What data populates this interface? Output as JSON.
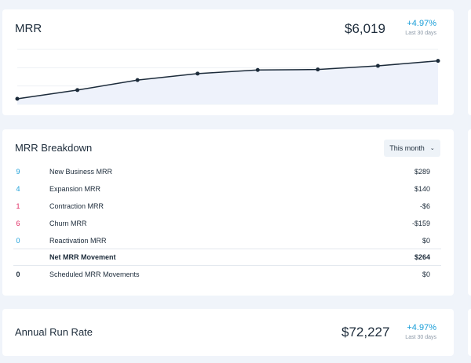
{
  "mrr": {
    "title": "MRR",
    "value": "$6,019",
    "change": "+4.97%",
    "period": "Last 30 days"
  },
  "chart_data": {
    "type": "area",
    "series": [
      {
        "values": [
          6.0,
          15.5,
          26.5,
          33.5,
          37.5,
          38.0,
          42.0,
          47.5
        ]
      }
    ],
    "ylim": [
      0,
      60
    ],
    "grid": true,
    "color": "#1c2b3a",
    "fill": "#eef2fb"
  },
  "breakdown": {
    "title": "MRR Breakdown",
    "period_select": "This month",
    "rows": [
      {
        "count": "9",
        "label": "New Business MRR",
        "amount": "$289",
        "count_color": "#1a9ed8"
      },
      {
        "count": "4",
        "label": "Expansion MRR",
        "amount": "$140",
        "count_color": "#1a9ed8"
      },
      {
        "count": "1",
        "label": "Contraction MRR",
        "amount": "-$6",
        "count_color": "#e0245e"
      },
      {
        "count": "6",
        "label": "Churn MRR",
        "amount": "-$159",
        "count_color": "#e0245e"
      },
      {
        "count": "0",
        "label": "Reactivation MRR",
        "amount": "$0",
        "count_color": "#1a9ed8"
      }
    ],
    "net": {
      "label": "Net MRR Movement",
      "amount": "$264"
    },
    "scheduled": {
      "count": "0",
      "label": "Scheduled MRR Movements",
      "amount": "$0"
    }
  },
  "arr": {
    "title": "Annual Run Rate",
    "value": "$72,227",
    "change": "+4.97%",
    "period": "Last 30 days"
  }
}
